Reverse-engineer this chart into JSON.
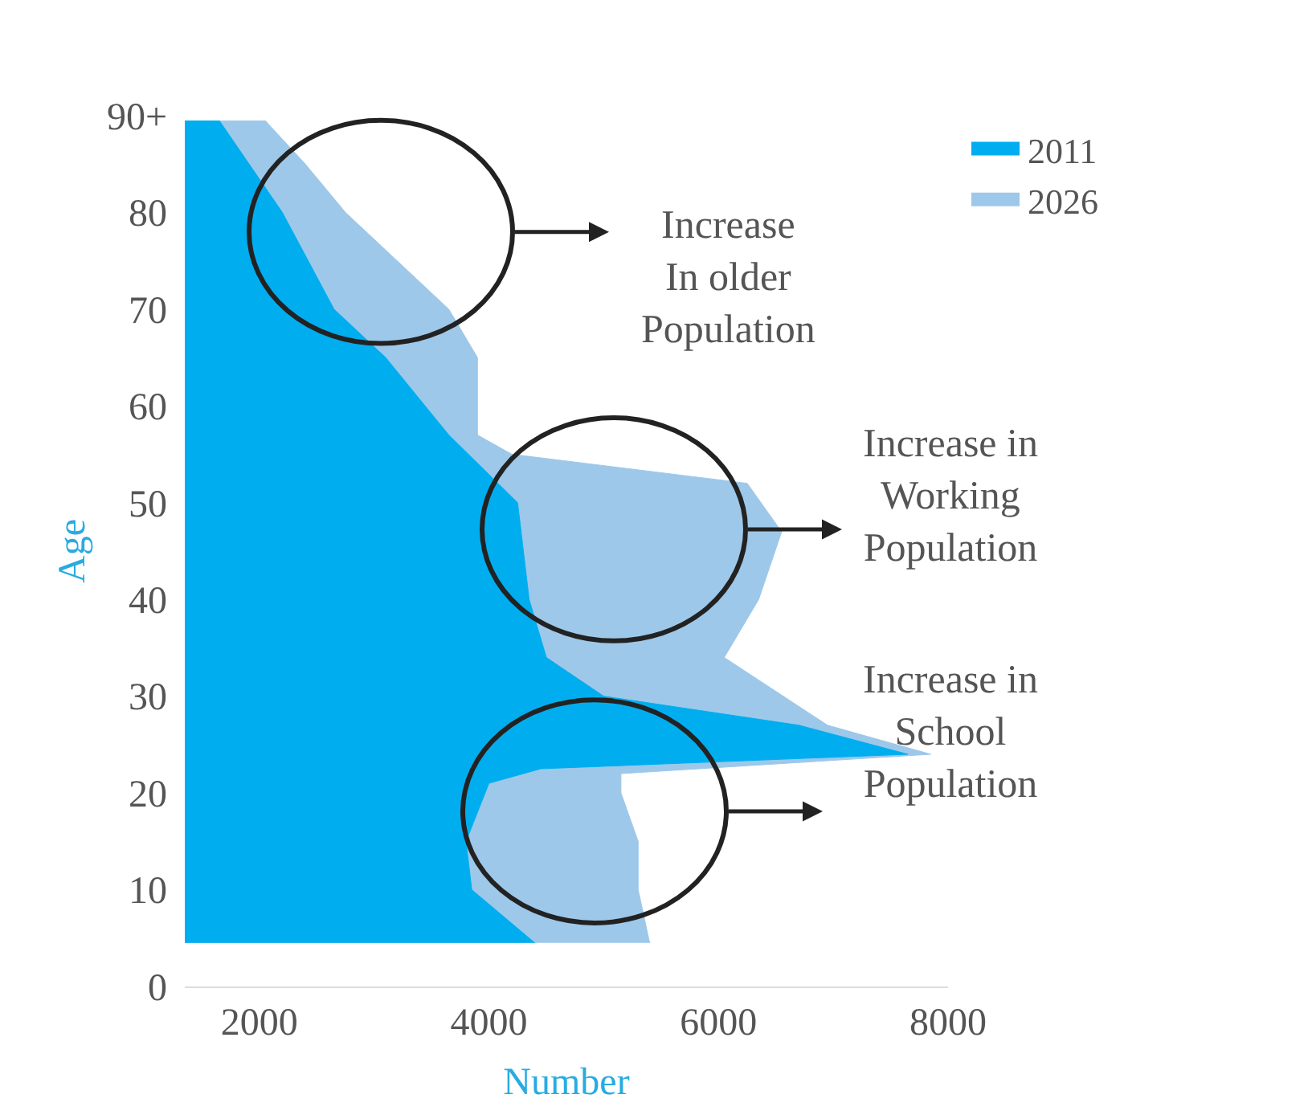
{
  "chart_data": {
    "type": "area",
    "orientation": "horizontal",
    "xlabel": "Number",
    "ylabel": "Age",
    "xlim": [
      1350,
      8000
    ],
    "xticks": [
      2000,
      4000,
      6000,
      8000
    ],
    "ylim": [
      0,
      90
    ],
    "yticks": [
      0,
      10,
      20,
      30,
      40,
      50,
      60,
      70,
      80,
      {
        "value": 90,
        "label": "90+"
      }
    ],
    "series": [
      {
        "name": "2026",
        "color": "#9dc8ea",
        "x": [
          4.5,
          10,
          15,
          20,
          22,
          24,
          27,
          34,
          40,
          47,
          52,
          55,
          57,
          65,
          70,
          80,
          85,
          89.5
        ],
        "values": [
          5400,
          5300,
          5300,
          5150,
          5150,
          7850,
          6950,
          6050,
          6350,
          6550,
          6250,
          4200,
          3900,
          3900,
          3650,
          2750,
          2400,
          2050
        ]
      },
      {
        "name": "2011",
        "color": "#00aeef",
        "x": [
          4.5,
          10,
          15,
          21,
          22.5,
          24,
          27,
          30,
          34,
          40,
          50,
          57,
          65,
          70,
          80,
          89.5
        ],
        "values": [
          4400,
          3850,
          3800,
          4000,
          4450,
          7650,
          6700,
          5000,
          4500,
          4350,
          4250,
          3650,
          3100,
          2650,
          2200,
          1650
        ]
      }
    ],
    "legend": "top right",
    "annotations": [
      "Increase\nIn older\nPopulation",
      "Increase in\nWorking\nPopulation",
      "Increase in\nSchool\nPopulation"
    ]
  }
}
